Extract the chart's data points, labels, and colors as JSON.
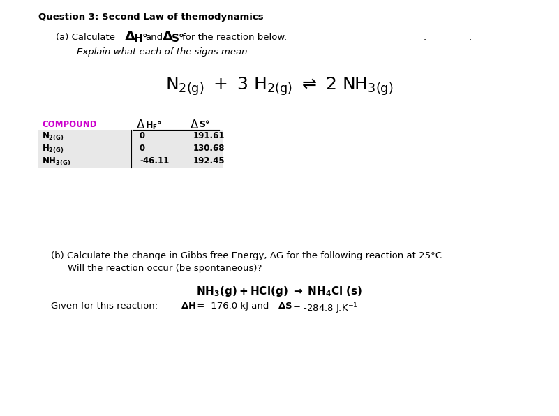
{
  "title": "Question 3: Second Law of themodynamics",
  "bg_color": "#ffffff",
  "text_color": "#000000",
  "blue_color": "#1a1aaa",
  "magenta_color": "#cc00cc",
  "dhf_values": [
    "0",
    "0",
    "-46.11"
  ],
  "ds_values": [
    "191.61",
    "130.68",
    "192.45"
  ],
  "fig_width": 8.01,
  "fig_height": 5.96,
  "dpi": 100
}
